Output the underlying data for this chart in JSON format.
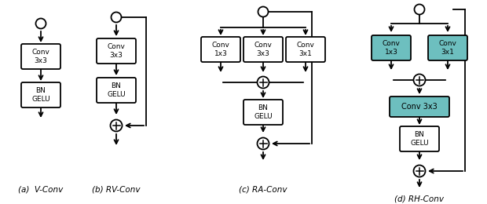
{
  "bg_color": "#ffffff",
  "box_color_white": "#ffffff",
  "box_color_teal": "#6dbfbf",
  "text_color": "#000000",
  "fig_width": 6.2,
  "fig_height": 2.6,
  "labels": {
    "a": "(a)  V-Conv",
    "b": "(b) RV-Conv",
    "c": "(c) RA-Conv",
    "d": "(d) RH-Conv"
  }
}
